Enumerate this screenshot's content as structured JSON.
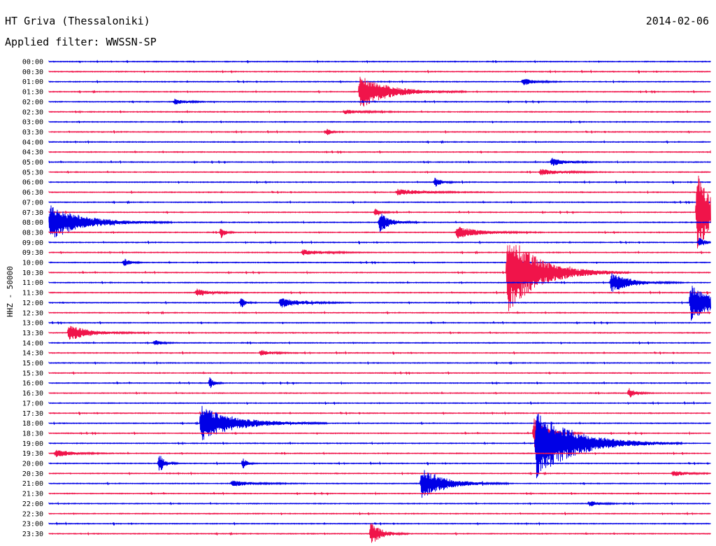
{
  "header": {
    "station": "HT Griva (Thessaloniki)",
    "date": "2014-02-06",
    "filter_prefix": "Applied filter:",
    "filter_name": "WWSSN-SP"
  },
  "channel_label": "HHZ - 50000",
  "colors": {
    "trace_a": "#0000e6",
    "trace_b": "#f0144a",
    "text": "#000000",
    "background": "#ffffff"
  },
  "chart_data": {
    "type": "line",
    "title": "HT Griva (Thessaloniki)",
    "subtitle": "Applied filter: WWSSN-SP",
    "ylabel": "HHZ - 50000",
    "xlabel": "",
    "row_duration_minutes": 30,
    "x_range_minutes": [
      0,
      30
    ],
    "rows": [
      {
        "label": "00:00",
        "events": []
      },
      {
        "label": "00:30",
        "events": []
      },
      {
        "label": "01:00",
        "events": [
          {
            "t": 21.5,
            "amp": 0.4,
            "dur": 0.8
          }
        ]
      },
      {
        "label": "01:30",
        "events": [
          {
            "t": 14.1,
            "amp": 1.7,
            "dur": 2.2
          }
        ]
      },
      {
        "label": "02:00",
        "events": [
          {
            "t": 5.7,
            "amp": 0.3,
            "dur": 0.8
          }
        ]
      },
      {
        "label": "02:30",
        "events": [
          {
            "t": 13.4,
            "amp": 0.2,
            "dur": 1.5
          }
        ]
      },
      {
        "label": "03:00",
        "events": []
      },
      {
        "label": "03:30",
        "events": [
          {
            "t": 12.6,
            "amp": 0.4,
            "dur": 0.3
          }
        ]
      },
      {
        "label": "04:00",
        "events": []
      },
      {
        "label": "04:30",
        "events": []
      },
      {
        "label": "05:00",
        "events": [
          {
            "t": 22.8,
            "amp": 0.4,
            "dur": 1.0
          }
        ]
      },
      {
        "label": "05:30",
        "events": [
          {
            "t": 22.3,
            "amp": 0.3,
            "dur": 1.5
          }
        ]
      },
      {
        "label": "06:00",
        "events": [
          {
            "t": 17.5,
            "amp": 0.5,
            "dur": 0.5
          }
        ]
      },
      {
        "label": "06:30",
        "events": [
          {
            "t": 15.8,
            "amp": 0.3,
            "dur": 2.0
          }
        ]
      },
      {
        "label": "07:00",
        "events": []
      },
      {
        "label": "07:30",
        "events": [
          {
            "t": 29.4,
            "amp": 4.5,
            "dur": 1.0
          },
          {
            "t": 14.8,
            "amp": 0.5,
            "dur": 0.4
          }
        ]
      },
      {
        "label": "08:00",
        "events": [
          {
            "t": 0.05,
            "amp": 1.8,
            "dur": 2.5
          },
          {
            "t": 15.0,
            "amp": 1.0,
            "dur": 0.8
          }
        ]
      },
      {
        "label": "08:30",
        "events": [
          {
            "t": 18.5,
            "amp": 0.6,
            "dur": 1.8
          },
          {
            "t": 7.8,
            "amp": 0.6,
            "dur": 0.3
          }
        ]
      },
      {
        "label": "09:00",
        "events": [
          {
            "t": 29.5,
            "amp": 0.5,
            "dur": 0.5
          }
        ]
      },
      {
        "label": "09:30",
        "events": [
          {
            "t": 11.5,
            "amp": 0.3,
            "dur": 1.5
          }
        ]
      },
      {
        "label": "10:00",
        "events": [
          {
            "t": 3.4,
            "amp": 0.4,
            "dur": 0.5
          }
        ]
      },
      {
        "label": "10:30",
        "events": [
          {
            "t": 20.8,
            "amp": 4.0,
            "dur": 2.5
          }
        ]
      },
      {
        "label": "11:00",
        "events": [
          {
            "t": 25.5,
            "amp": 1.0,
            "dur": 1.5
          }
        ]
      },
      {
        "label": "11:30",
        "events": [
          {
            "t": 6.7,
            "amp": 0.4,
            "dur": 1.0
          }
        ]
      },
      {
        "label": "12:00",
        "events": [
          {
            "t": 29.1,
            "amp": 1.8,
            "dur": 2.0
          },
          {
            "t": 10.5,
            "amp": 0.5,
            "dur": 1.5
          },
          {
            "t": 8.7,
            "amp": 0.6,
            "dur": 0.3
          }
        ]
      },
      {
        "label": "12:30",
        "events": []
      },
      {
        "label": "13:00",
        "events": []
      },
      {
        "label": "13:30",
        "events": [
          {
            "t": 0.9,
            "amp": 0.8,
            "dur": 1.6
          }
        ]
      },
      {
        "label": "14:00",
        "events": [
          {
            "t": 4.8,
            "amp": 0.3,
            "dur": 0.5
          }
        ]
      },
      {
        "label": "14:30",
        "events": [
          {
            "t": 9.6,
            "amp": 0.3,
            "dur": 0.8
          }
        ]
      },
      {
        "label": "15:00",
        "events": []
      },
      {
        "label": "15:30",
        "events": []
      },
      {
        "label": "16:00",
        "events": [
          {
            "t": 7.3,
            "amp": 0.6,
            "dur": 0.3
          }
        ]
      },
      {
        "label": "16:30",
        "events": [
          {
            "t": 26.3,
            "amp": 0.5,
            "dur": 0.5
          }
        ]
      },
      {
        "label": "17:00",
        "events": []
      },
      {
        "label": "17:30",
        "events": []
      },
      {
        "label": "18:00",
        "events": [
          {
            "t": 6.9,
            "amp": 1.8,
            "dur": 2.6
          }
        ]
      },
      {
        "label": "18:30",
        "events": [
          {
            "t": 22.0,
            "amp": 1.5,
            "dur": 1.0
          }
        ]
      },
      {
        "label": "19:00",
        "events": [
          {
            "t": 22.1,
            "amp": 3.5,
            "dur": 3.0
          }
        ]
      },
      {
        "label": "19:30",
        "events": [
          {
            "t": 0.3,
            "amp": 0.4,
            "dur": 1.2
          }
        ]
      },
      {
        "label": "20:00",
        "events": [
          {
            "t": 5.0,
            "amp": 1.0,
            "dur": 0.4
          },
          {
            "t": 8.8,
            "amp": 0.6,
            "dur": 0.3
          }
        ]
      },
      {
        "label": "20:30",
        "events": [
          {
            "t": 28.3,
            "amp": 0.3,
            "dur": 1.0
          }
        ]
      },
      {
        "label": "21:00",
        "events": [
          {
            "t": 16.9,
            "amp": 1.5,
            "dur": 1.8
          },
          {
            "t": 8.3,
            "amp": 0.3,
            "dur": 1.5
          }
        ]
      },
      {
        "label": "21:30",
        "events": []
      },
      {
        "label": "22:00",
        "events": [
          {
            "t": 24.5,
            "amp": 0.3,
            "dur": 0.8
          }
        ]
      },
      {
        "label": "22:30",
        "events": []
      },
      {
        "label": "23:00",
        "events": []
      },
      {
        "label": "23:30",
        "events": [
          {
            "t": 14.6,
            "amp": 1.2,
            "dur": 0.8
          }
        ]
      }
    ]
  }
}
